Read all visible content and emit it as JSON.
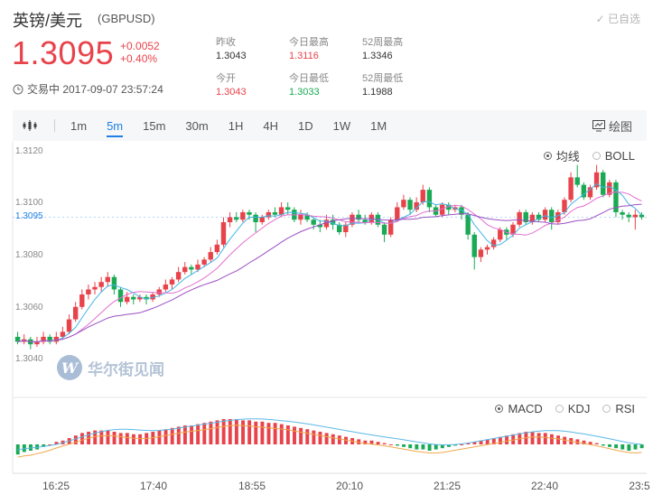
{
  "header": {
    "title": "英镑/美元",
    "code": "(GBPUSD)",
    "added_label": "已自选",
    "price": "1.3095",
    "change": "+0.0052",
    "change_pct": "+0.40%",
    "time_label": "交易中 2017-09-07 23:57:24"
  },
  "stats": [
    {
      "label": "昨收",
      "value": "1.3043",
      "color": "#333333"
    },
    {
      "label": "今日最高",
      "value": "1.3116",
      "color": "#e8434b"
    },
    {
      "label": "52周最高",
      "value": "1.3346",
      "color": "#333333"
    },
    {
      "label": "今开",
      "value": "1.3043",
      "color": "#e8434b"
    },
    {
      "label": "今日最低",
      "value": "1.3033",
      "color": "#1aaa55"
    },
    {
      "label": "52周最低",
      "value": "1.1988",
      "color": "#333333"
    }
  ],
  "toolbar": {
    "chart_icon": "candlestick-icon",
    "intervals": [
      "1m",
      "5m",
      "15m",
      "30m",
      "1H",
      "4H",
      "1D",
      "1W",
      "1M"
    ],
    "active_interval": "5m",
    "draw_label": "绘图"
  },
  "main_indicators": {
    "options": [
      "均线",
      "BOLL"
    ],
    "selected": "均线"
  },
  "sub_indicators": {
    "options": [
      "MACD",
      "KDJ",
      "RSI"
    ],
    "selected": "MACD"
  },
  "watermark": "华尔街见闻",
  "colors": {
    "up": "#e8434b",
    "down": "#1aaa55",
    "accent": "#1f7fe5",
    "ma_fast": "#41b6e6",
    "ma_mid": "#e36fd0",
    "ma_slow": "#9b4fc4"
  },
  "chart_data": {
    "type": "candlestick",
    "y_ticks": [
      "1.3120",
      "1.3100",
      "1.3080",
      "1.3060",
      "1.3040"
    ],
    "ylim": [
      1.3035,
      1.3122
    ],
    "current_price": 1.3095,
    "current_price_label": "1.3095",
    "x_ticks": [
      "16:25",
      "17:40",
      "18:55",
      "20:10",
      "21:25",
      "22:40",
      "23:5"
    ],
    "candles": [
      [
        1.3047,
        1.3045,
        1.3049,
        1.3044
      ],
      [
        1.3045,
        1.3046,
        1.3048,
        1.3044
      ],
      [
        1.3046,
        1.3044,
        1.3047,
        1.3042
      ],
      [
        1.3044,
        1.3045,
        1.3047,
        1.3043
      ],
      [
        1.3045,
        1.3047,
        1.3049,
        1.3044
      ],
      [
        1.3047,
        1.3045,
        1.3048,
        1.3044
      ],
      [
        1.3045,
        1.3047,
        1.3049,
        1.3044
      ],
      [
        1.3047,
        1.3049,
        1.3051,
        1.3046
      ],
      [
        1.3049,
        1.3054,
        1.3056,
        1.3048
      ],
      [
        1.3054,
        1.3059,
        1.3061,
        1.3053
      ],
      [
        1.3059,
        1.3064,
        1.3066,
        1.3058
      ],
      [
        1.3064,
        1.3066,
        1.3068,
        1.3062
      ],
      [
        1.3066,
        1.3067,
        1.3069,
        1.3064
      ],
      [
        1.3067,
        1.3069,
        1.3071,
        1.3065
      ],
      [
        1.3069,
        1.3071,
        1.3073,
        1.3067
      ],
      [
        1.3071,
        1.3066,
        1.3072,
        1.3064
      ],
      [
        1.3066,
        1.3061,
        1.3067,
        1.3059
      ],
      [
        1.3061,
        1.3063,
        1.3065,
        1.306
      ],
      [
        1.3063,
        1.3062,
        1.3064,
        1.306
      ],
      [
        1.3062,
        1.3063,
        1.3064,
        1.3061
      ],
      [
        1.3063,
        1.3062,
        1.3064,
        1.306
      ],
      [
        1.3062,
        1.3064,
        1.3065,
        1.3061
      ],
      [
        1.3064,
        1.3066,
        1.3067,
        1.3063
      ],
      [
        1.3066,
        1.3068,
        1.307,
        1.3065
      ],
      [
        1.3068,
        1.307,
        1.3071,
        1.3066
      ],
      [
        1.307,
        1.3073,
        1.3075,
        1.3069
      ],
      [
        1.3073,
        1.3075,
        1.3077,
        1.3072
      ],
      [
        1.3075,
        1.3074,
        1.3076,
        1.3072
      ],
      [
        1.3074,
        1.3076,
        1.3078,
        1.3073
      ],
      [
        1.3076,
        1.3078,
        1.3079,
        1.3075
      ],
      [
        1.3078,
        1.3081,
        1.3083,
        1.3077
      ],
      [
        1.3081,
        1.3084,
        1.3086,
        1.308
      ],
      [
        1.3084,
        1.3093,
        1.3095,
        1.3083
      ],
      [
        1.3093,
        1.3095,
        1.3097,
        1.3091
      ],
      [
        1.3095,
        1.3094,
        1.3097,
        1.3093
      ],
      [
        1.3094,
        1.3097,
        1.3098,
        1.3093
      ],
      [
        1.3097,
        1.3096,
        1.3098,
        1.3094
      ],
      [
        1.3096,
        1.3093,
        1.3097,
        1.3089
      ],
      [
        1.3093,
        1.3095,
        1.3096,
        1.3092
      ],
      [
        1.3095,
        1.3097,
        1.3098,
        1.3094
      ],
      [
        1.3097,
        1.3096,
        1.3099,
        1.3095
      ],
      [
        1.3096,
        1.3099,
        1.3101,
        1.3095
      ],
      [
        1.3099,
        1.3098,
        1.3101,
        1.3096
      ],
      [
        1.3098,
        1.3094,
        1.3099,
        1.3093
      ],
      [
        1.3094,
        1.3096,
        1.3098,
        1.3092
      ],
      [
        1.3096,
        1.3094,
        1.3097,
        1.3093
      ],
      [
        1.3094,
        1.3092,
        1.3095,
        1.309
      ],
      [
        1.3092,
        1.3091,
        1.3094,
        1.3089
      ],
      [
        1.3091,
        1.3094,
        1.3096,
        1.309
      ],
      [
        1.3094,
        1.3092,
        1.3096,
        1.309
      ],
      [
        1.3092,
        1.3089,
        1.3093,
        1.3088
      ],
      [
        1.3089,
        1.3092,
        1.3093,
        1.3087
      ],
      [
        1.3092,
        1.3096,
        1.3097,
        1.3091
      ],
      [
        1.3096,
        1.3094,
        1.3098,
        1.3093
      ],
      [
        1.3094,
        1.3093,
        1.3096,
        1.3092
      ],
      [
        1.3093,
        1.3096,
        1.3097,
        1.3092
      ],
      [
        1.3096,
        1.3092,
        1.3097,
        1.3091
      ],
      [
        1.3092,
        1.3088,
        1.3093,
        1.3085
      ],
      [
        1.3088,
        1.3094,
        1.3095,
        1.3087
      ],
      [
        1.3094,
        1.3099,
        1.3101,
        1.3093
      ],
      [
        1.3099,
        1.3102,
        1.3104,
        1.3098
      ],
      [
        1.3102,
        1.3098,
        1.3103,
        1.3096
      ],
      [
        1.3098,
        1.3101,
        1.3103,
        1.3097
      ],
      [
        1.3101,
        1.3106,
        1.3108,
        1.31
      ],
      [
        1.3106,
        1.3099,
        1.3107,
        1.3097
      ],
      [
        1.3099,
        1.3096,
        1.31,
        1.3095
      ],
      [
        1.3096,
        1.31,
        1.3101,
        1.3095
      ],
      [
        1.31,
        1.3098,
        1.3101,
        1.3096
      ],
      [
        1.3098,
        1.3099,
        1.31,
        1.3097
      ],
      [
        1.3099,
        1.3096,
        1.31,
        1.3094
      ],
      [
        1.3096,
        1.3088,
        1.3097,
        1.3086
      ],
      [
        1.3088,
        1.3079,
        1.3089,
        1.3074
      ],
      [
        1.3079,
        1.3082,
        1.3083,
        1.3077
      ],
      [
        1.3082,
        1.3083,
        1.3084,
        1.308
      ],
      [
        1.3083,
        1.3086,
        1.3087,
        1.3082
      ],
      [
        1.3086,
        1.309,
        1.3091,
        1.3085
      ],
      [
        1.309,
        1.3088,
        1.3091,
        1.3086
      ],
      [
        1.3088,
        1.3092,
        1.3093,
        1.3087
      ],
      [
        1.3092,
        1.3097,
        1.3098,
        1.3091
      ],
      [
        1.3097,
        1.3093,
        1.3098,
        1.3092
      ],
      [
        1.3093,
        1.3096,
        1.3097,
        1.3092
      ],
      [
        1.3096,
        1.3094,
        1.3097,
        1.3093
      ],
      [
        1.3094,
        1.3098,
        1.3099,
        1.3093
      ],
      [
        1.3098,
        1.3093,
        1.3099,
        1.309
      ],
      [
        1.3093,
        1.3097,
        1.3098,
        1.3092
      ],
      [
        1.3097,
        1.3102,
        1.3103,
        1.3096
      ],
      [
        1.3102,
        1.3111,
        1.3113,
        1.3101
      ],
      [
        1.3111,
        1.3108,
        1.3116,
        1.3107
      ],
      [
        1.3108,
        1.3103,
        1.3109,
        1.3102
      ],
      [
        1.3103,
        1.3107,
        1.3108,
        1.3102
      ],
      [
        1.3107,
        1.3113,
        1.3116,
        1.3106
      ],
      [
        1.3113,
        1.3104,
        1.3114,
        1.3103
      ],
      [
        1.3104,
        1.3109,
        1.311,
        1.3103
      ],
      [
        1.3109,
        1.3097,
        1.311,
        1.3095
      ],
      [
        1.3097,
        1.3096,
        1.3098,
        1.3094
      ],
      [
        1.3096,
        1.3095,
        1.3097,
        1.3093
      ],
      [
        1.3095,
        1.3096,
        1.3098,
        1.309
      ],
      [
        1.3096,
        1.3095,
        1.3097,
        1.3094
      ]
    ],
    "macd_hist": [
      -0.4,
      -0.3,
      -0.25,
      -0.2,
      -0.1,
      0,
      0.1,
      0.15,
      0.25,
      0.35,
      0.45,
      0.5,
      0.55,
      0.55,
      0.55,
      0.5,
      0.45,
      0.45,
      0.4,
      0.4,
      0.45,
      0.5,
      0.55,
      0.6,
      0.65,
      0.7,
      0.75,
      0.75,
      0.8,
      0.85,
      0.9,
      0.95,
      1.0,
      1.0,
      1.0,
      0.95,
      0.95,
      0.9,
      0.9,
      0.85,
      0.85,
      0.8,
      0.75,
      0.7,
      0.65,
      0.6,
      0.55,
      0.5,
      0.45,
      0.4,
      0.35,
      0.3,
      0.25,
      0.2,
      0.15,
      0.15,
      0.1,
      0.05,
      0,
      -0.05,
      -0.1,
      -0.15,
      -0.2,
      -0.2,
      -0.25,
      -0.2,
      -0.15,
      -0.1,
      -0.05,
      0,
      0.05,
      0.1,
      0.15,
      0.2,
      0.25,
      0.3,
      0.35,
      0.4,
      0.45,
      0.5,
      0.5,
      0.45,
      0.45,
      0.4,
      0.35,
      0.3,
      0.25,
      0.2,
      0.15,
      0.1,
      0.05,
      -0.05,
      -0.1,
      -0.15,
      -0.2,
      -0.25,
      -0.2,
      -0.15
    ]
  }
}
